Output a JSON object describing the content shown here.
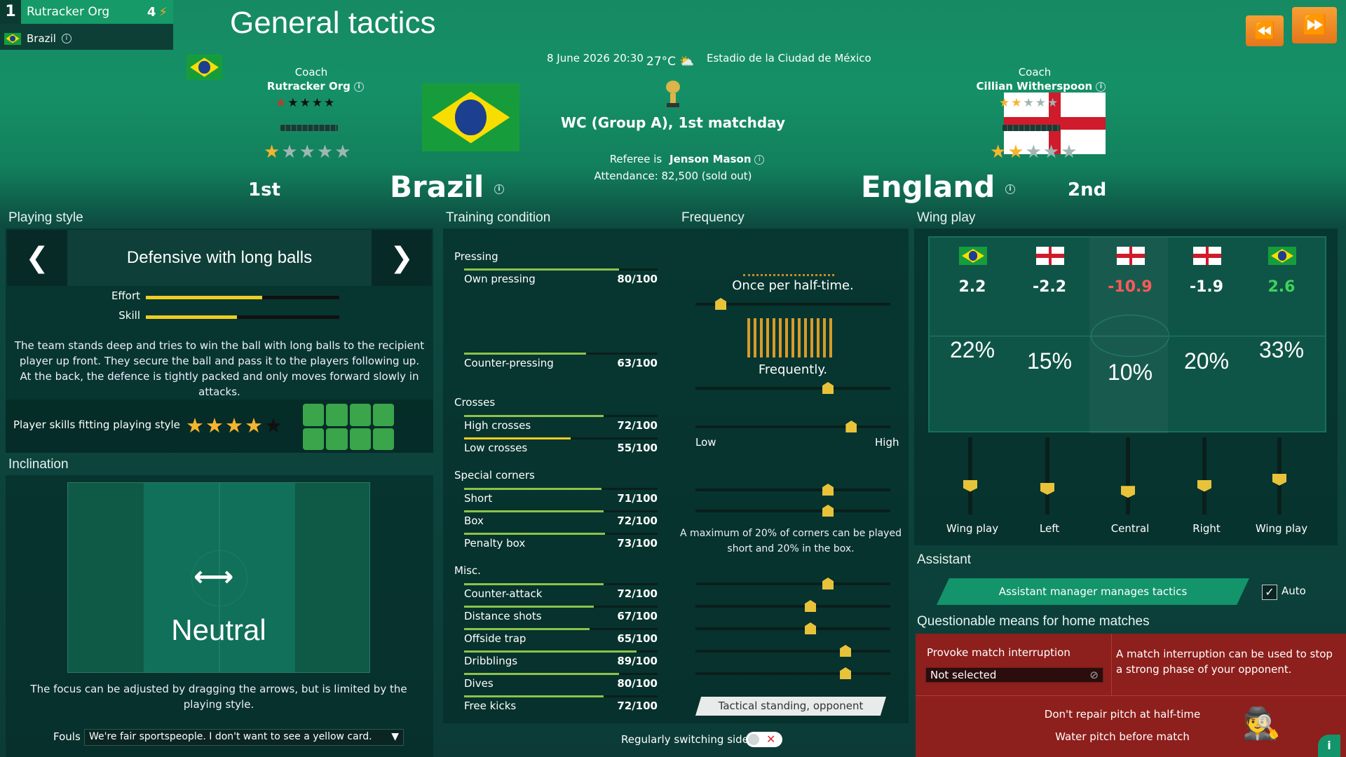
{
  "manager": {
    "rank": "1",
    "name": "Rutracker Org",
    "points": "4",
    "team": "Brazil"
  },
  "page_title": "General tactics",
  "match": {
    "date": "8 June 2026 20:30",
    "temp": "27°C",
    "stadium": "Estadio de la Ciudad de México",
    "competition": "WC (Group A), 1st matchday",
    "referee_label": "Referee is",
    "referee": "Jenson Mason",
    "attendance": "Attendance: 82,500 (sold out)"
  },
  "home": {
    "coach_label": "Coach",
    "coach": "Rutracker Org",
    "team": "Brazil",
    "position": "1st",
    "coach_stars": 5,
    "team_stars": 1
  },
  "away": {
    "coach_label": "Coach",
    "coach": "Cillian Witherspoon",
    "team": "England",
    "position": "2nd",
    "coach_stars": 2,
    "team_stars": 2
  },
  "playing_style": {
    "section": "Playing style",
    "name": "Defensive with long balls",
    "effort_label": "Effort",
    "effort": 0.6,
    "skill_label": "Skill",
    "skill": 0.47,
    "description": "The team stands deep and tries to win the ball with long balls to the recipient player up front. They secure the ball and pass it to the players following up. At the back, the defence is tightly packed and only moves forward slowly in attacks.",
    "fit_label": "Player skills fitting playing style",
    "fit_stars": 4
  },
  "inclination": {
    "section": "Inclination",
    "value": "Neutral",
    "description": "The focus can be adjusted by dragging the arrows, but is limited by the playing style.",
    "fouls_label": "Fouls",
    "fouls_value": "We're fair sportspeople. I don't want to see a yellow card."
  },
  "training": {
    "section": "Training condition",
    "frequency_section": "Frequency",
    "groups": [
      "Pressing",
      "Crosses",
      "Special corners",
      "Misc."
    ],
    "rows": [
      {
        "label": "Own pressing",
        "value": "80/100",
        "pct": 0.8
      },
      {
        "label": "Counter-pressing",
        "value": "63/100",
        "pct": 0.63
      },
      {
        "label": "High crosses",
        "value": "72/100",
        "pct": 0.72
      },
      {
        "label": "Low crosses",
        "value": "55/100",
        "pct": 0.55
      },
      {
        "label": "Short",
        "value": "71/100",
        "pct": 0.71
      },
      {
        "label": "Box",
        "value": "72/100",
        "pct": 0.72
      },
      {
        "label": "Penalty box",
        "value": "73/100",
        "pct": 0.73
      },
      {
        "label": "Counter-attack",
        "value": "72/100",
        "pct": 0.72
      },
      {
        "label": "Distance shots",
        "value": "67/100",
        "pct": 0.67
      },
      {
        "label": "Offside trap",
        "value": "65/100",
        "pct": 0.65
      },
      {
        "label": "Dribblings",
        "value": "89/100",
        "pct": 0.89
      },
      {
        "label": "Dives",
        "value": "80/100",
        "pct": 0.8
      },
      {
        "label": "Free kicks",
        "value": "72/100",
        "pct": 0.72
      }
    ],
    "freq_pressing": "Once per half-time.",
    "freq_counter": "Frequently.",
    "low": "Low",
    "high": "High",
    "corners_note": "A maximum of 20% of corners can be played short and 20% in the box.",
    "tactical_button": "Tactical standing, opponent",
    "switch_label": "Regularly switching sides"
  },
  "wing_play": {
    "section": "Wing play",
    "columns": [
      {
        "flag": "brazil",
        "rating": "2.2",
        "pct": "22%",
        "label": "Wing play",
        "color": "#ffffff"
      },
      {
        "flag": "england",
        "rating": "-2.2",
        "pct": "15%",
        "label": "Left",
        "color": "#ffffff"
      },
      {
        "flag": "england",
        "rating": "-10.9",
        "pct": "10%",
        "label": "Central",
        "color": "#ff5a5a"
      },
      {
        "flag": "england",
        "rating": "-1.9",
        "pct": "20%",
        "label": "Right",
        "color": "#ffffff"
      },
      {
        "flag": "brazil",
        "rating": "2.6",
        "pct": "33%",
        "label": "Wing play",
        "color": "#3fd25a"
      }
    ]
  },
  "assistant": {
    "section": "Assistant",
    "button": "Assistant manager manages tactics",
    "auto_label": "Auto"
  },
  "questionable": {
    "section": "Questionable means for home matches",
    "provoke_label": "Provoke match interruption",
    "provoke_value": "Not selected",
    "provoke_desc": "A match interruption can be used to stop a strong phase of your opponent.",
    "item1": "Don't repair pitch at half-time",
    "item2": "Water pitch before match"
  }
}
